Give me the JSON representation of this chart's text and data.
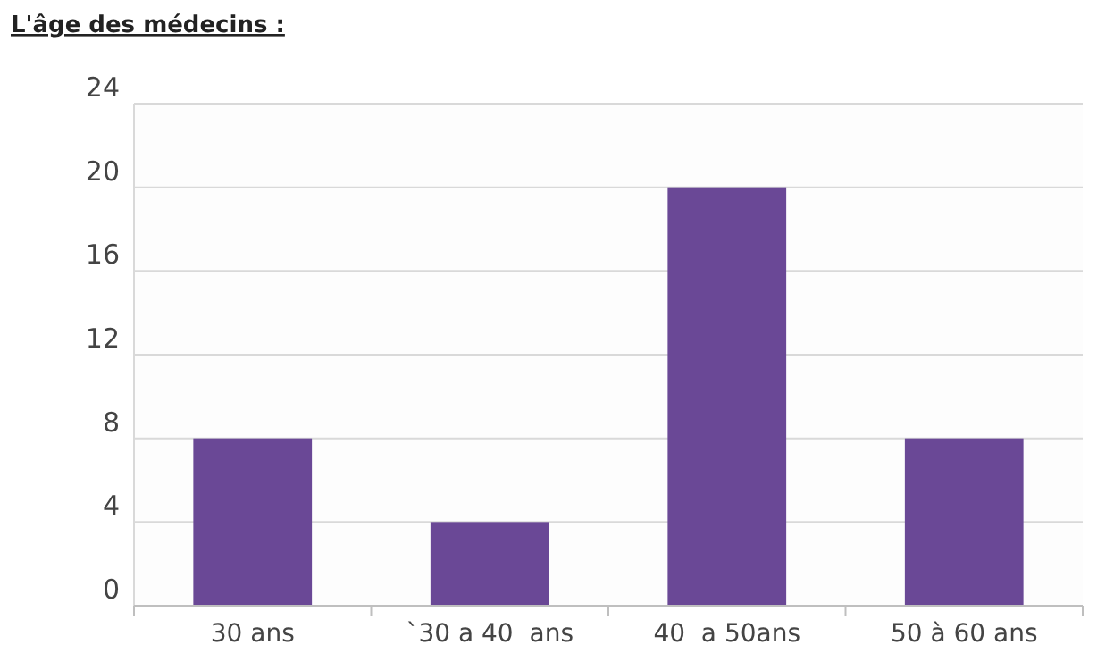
{
  "chart_data": {
    "type": "bar",
    "title": "L'âge des médecins :",
    "categories": [
      "30 ans",
      "`30 a 40  ans",
      "40  a 50ans",
      "50 à 60 ans"
    ],
    "values": [
      8,
      4,
      20,
      8
    ],
    "color": "#6a4896",
    "ylim": [
      0,
      24
    ],
    "yticks": [
      0,
      4,
      8,
      12,
      16,
      20,
      24
    ],
    "grid": "y"
  }
}
